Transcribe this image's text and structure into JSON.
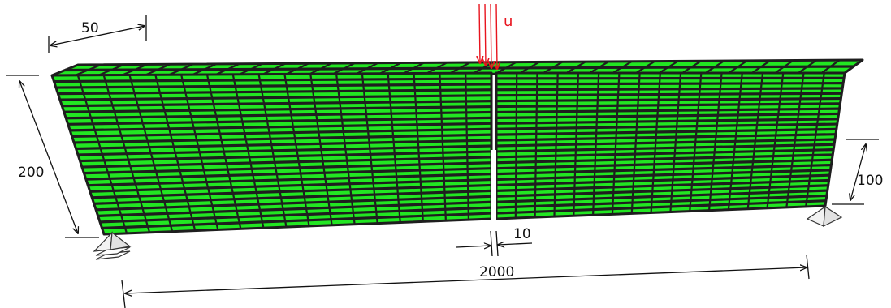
{
  "colors": {
    "element_fill": "#22e622",
    "mesh_line": "#1e1e1e",
    "load_arrow": "#e8141e",
    "dimension_line": "#111111",
    "support_fill": "#f2f2f2"
  },
  "beam": {
    "elements_length_per_half": 17,
    "elements_height": 26,
    "elements_depth": 2
  },
  "load": {
    "label": "u",
    "arrow_count": 4,
    "icon": "downward-arrows"
  },
  "supports": {
    "icon": "pin-support"
  },
  "dimensions": {
    "width": "50",
    "height": "200",
    "support_height": "100",
    "notch_width": "10",
    "span": "2000"
  }
}
